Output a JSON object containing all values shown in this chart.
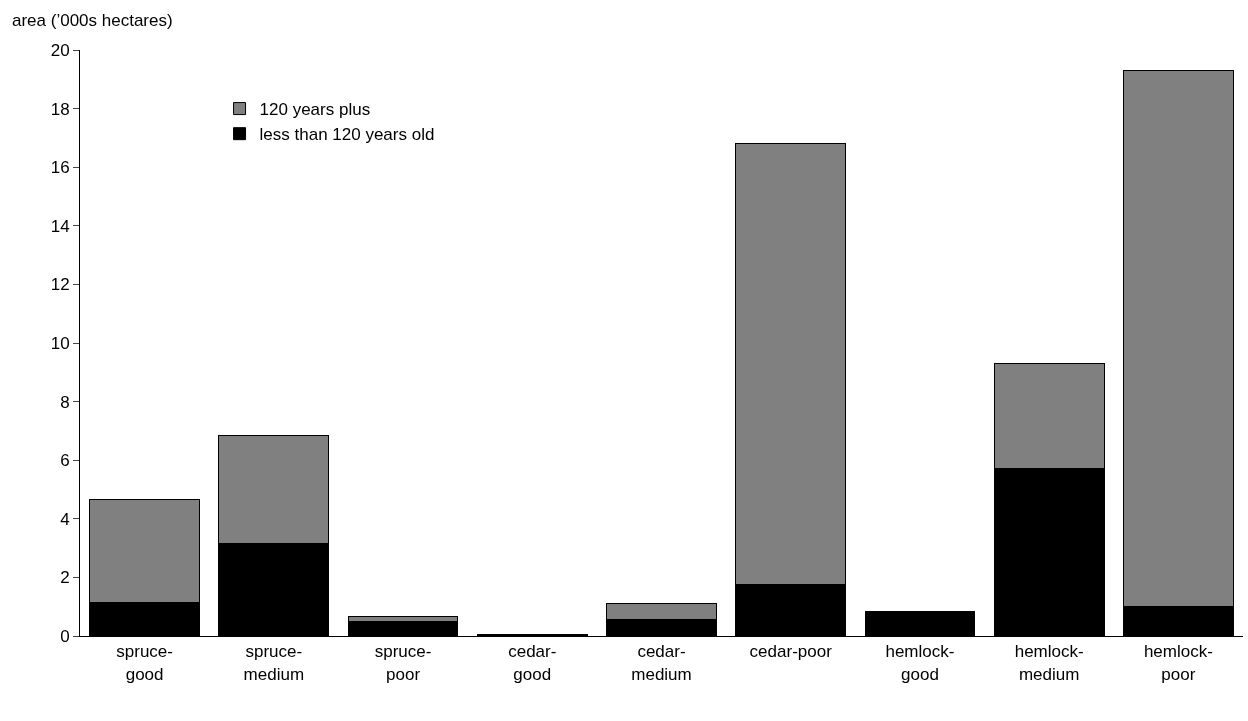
{
  "chart_data": {
    "type": "bar",
    "stacked": true,
    "ylabel": "area (’000s hectares)",
    "categories": [
      "spruce-\ngood",
      "spruce-\nmedium",
      "spruce-\npoor",
      "cedar-\ngood",
      "cedar-\nmedium",
      "cedar-poor",
      "hemlock-\ngood",
      "hemlock-\nmedium",
      "hemlock-\npoor"
    ],
    "series": [
      {
        "name": "less than 120 years old",
        "color": "#000000",
        "values": [
          1.15,
          3.15,
          0.5,
          0.05,
          0.55,
          1.75,
          0.85,
          5.7,
          1.0
        ]
      },
      {
        "name": "120 years plus",
        "color": "#808080",
        "values": [
          3.5,
          3.7,
          0.15,
          null,
          0.55,
          15.05,
          null,
          3.6,
          18.3
        ]
      }
    ],
    "ylim": [
      0,
      20
    ],
    "yticks": [
      0,
      2,
      4,
      6,
      8,
      10,
      12,
      14,
      16,
      18,
      20
    ],
    "legend": "top left"
  }
}
